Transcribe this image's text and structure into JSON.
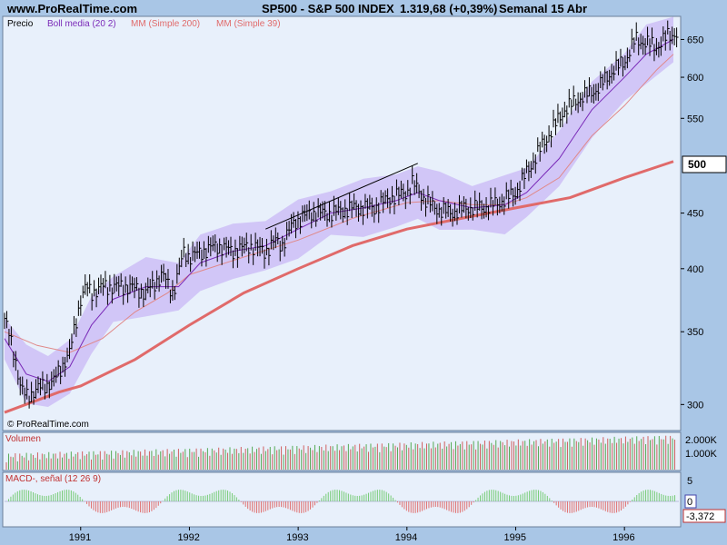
{
  "header": {
    "site": "www.ProRealTime.com",
    "symbol": "SP500 - S&P 500 INDEX",
    "last": "1.319,68 (+0,39%)",
    "period": "Semanal  15 Abr"
  },
  "colors": {
    "background": "#a9c6e6",
    "panel": "#e8f0fb",
    "bollinger": "#c9b8f5",
    "boll_mid": "#7a2ab8",
    "sma200": "#e06a6a",
    "sma39": "#e08888",
    "macd": "#77cc77",
    "signal": "#e07070",
    "price_bars": "#000000"
  },
  "price_panel": {
    "legend": {
      "price": "Precio",
      "boll": "Boll media (20 2)",
      "sma200": "MM (Simple 200)",
      "sma39": "MM (Simple 39)"
    },
    "watermark": "© ProRealTime.com",
    "last_value_tag": "500"
  },
  "volume_panel": {
    "label": "Volumen",
    "ticks": [
      "2.000K",
      "1.000K"
    ]
  },
  "macd_panel": {
    "label": "MACD-, señal (12 26 9)",
    "ticks": [
      "5",
      "0"
    ],
    "last_value": "-3,372"
  },
  "chart_data": {
    "type": "line",
    "y_scale": "log",
    "y_ticks": [
      300,
      350,
      400,
      450,
      500,
      550,
      600,
      650
    ],
    "x_tick_labels": [
      "1991",
      "1992",
      "1993",
      "1994",
      "1995",
      "1996"
    ],
    "x_range": [
      1990.3,
      1996.5
    ],
    "ylim": [
      285,
      680
    ],
    "price_bars": {
      "x": [
        1990.3,
        1990.4,
        1990.45,
        1990.5,
        1990.6,
        1990.75,
        1990.9,
        1991.0,
        1991.05,
        1991.1,
        1991.2,
        1991.3,
        1991.45,
        1991.6,
        1991.75,
        1991.85,
        1991.95,
        1992.0,
        1992.25,
        1992.4,
        1992.55,
        1992.7,
        1992.8,
        1992.85,
        1992.95,
        1993.1,
        1993.3,
        1993.5,
        1993.7,
        1993.85,
        1994.0,
        1994.05,
        1994.15,
        1994.25,
        1994.4,
        1994.55,
        1994.7,
        1994.85,
        1995.0,
        1995.15,
        1995.3,
        1995.45,
        1995.6,
        1995.75,
        1995.9,
        1996.0,
        1996.1,
        1996.2,
        1996.3,
        1996.4,
        1996.45
      ],
      "values": [
        360,
        330,
        310,
        305,
        310,
        315,
        335,
        375,
        385,
        380,
        385,
        385,
        385,
        380,
        395,
        380,
        415,
        410,
        420,
        415,
        420,
        415,
        425,
        420,
        440,
        450,
        450,
        455,
        455,
        465,
        470,
        480,
        465,
        455,
        450,
        455,
        455,
        460,
        470,
        500,
        530,
        560,
        575,
        585,
        610,
        620,
        650,
        645,
        640,
        655,
        658
      ]
    },
    "series": [
      {
        "name": "MM (Simple 200)",
        "x": [
          1990.3,
          1990.8,
          1991.0,
          1991.5,
          1992.0,
          1992.5,
          1993.0,
          1993.5,
          1994.0,
          1994.5,
          1995.0,
          1995.5,
          1996.0,
          1996.45
        ],
        "values": [
          295,
          308,
          312,
          330,
          355,
          380,
          400,
          420,
          435,
          445,
          455,
          465,
          485,
          502
        ]
      },
      {
        "name": "MM (Simple 39)",
        "x": [
          1990.3,
          1990.6,
          1990.9,
          1991.2,
          1991.5,
          1991.8,
          1992.0,
          1992.5,
          1993.0,
          1993.5,
          1994.0,
          1994.3,
          1994.6,
          1994.9,
          1995.1,
          1995.4,
          1995.7,
          1996.0,
          1996.3,
          1996.45
        ],
        "values": [
          350,
          340,
          335,
          345,
          365,
          380,
          395,
          410,
          425,
          445,
          460,
          462,
          458,
          458,
          465,
          485,
          530,
          565,
          610,
          630
        ]
      },
      {
        "name": "Boll media (20 2)",
        "x": [
          1990.3,
          1990.5,
          1990.7,
          1990.9,
          1991.1,
          1991.3,
          1991.6,
          1991.9,
          1992.1,
          1992.4,
          1992.7,
          1993.0,
          1993.3,
          1993.6,
          1993.9,
          1994.1,
          1994.3,
          1994.6,
          1994.9,
          1995.1,
          1995.4,
          1995.7,
          1996.0,
          1996.2,
          1996.45
        ],
        "values": [
          345,
          320,
          315,
          325,
          355,
          375,
          385,
          385,
          405,
          415,
          420,
          435,
          450,
          455,
          462,
          470,
          462,
          455,
          458,
          470,
          505,
          560,
          600,
          630,
          650
        ]
      }
    ],
    "trendline": {
      "x": [
        1992.7,
        1994.1
      ],
      "values": [
        435,
        500
      ]
    }
  }
}
